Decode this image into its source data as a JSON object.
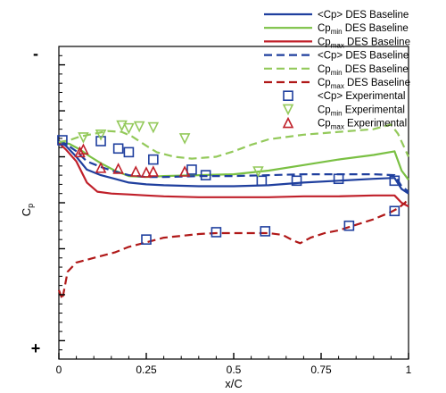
{
  "chart_data": {
    "type": "line",
    "xlabel": "x/C",
    "ylabel": "C",
    "ylabel_sub": "p",
    "xlim": [
      0,
      1
    ],
    "ylim": [
      -2.2,
      1.2
    ],
    "y_inverted": true,
    "x_ticks": [
      "0",
      "0.25",
      "0.5",
      "0.75",
      "1"
    ],
    "sign_labels": {
      "top": "-",
      "bottom": "+"
    },
    "grid": false,
    "legend_position": "top-right",
    "colors": {
      "blue": "#1f3f9e",
      "green": "#7ac043",
      "red": "#c0202a",
      "lightgreen": "#93c95a",
      "darkred": "#b01818"
    },
    "series": [
      {
        "name_main": "<Cp> DES Baseline",
        "name_sub": "",
        "kind": "line",
        "dash": "solid",
        "color": "blue",
        "x": [
          0,
          0.02,
          0.05,
          0.08,
          0.12,
          0.16,
          0.2,
          0.25,
          0.3,
          0.4,
          0.5,
          0.6,
          0.7,
          0.8,
          0.9,
          0.96,
          0.98,
          1
        ],
        "y": [
          -1.17,
          -1.12,
          -1.0,
          -0.86,
          -0.8,
          -0.76,
          -0.72,
          -0.7,
          -0.69,
          -0.68,
          -0.68,
          -0.69,
          -0.72,
          -0.74,
          -0.76,
          -0.77,
          -0.65,
          -0.6
        ]
      },
      {
        "name_main": "Cp",
        "name_sub": "min",
        "name_tail": " DES Baseline",
        "kind": "line",
        "dash": "solid",
        "color": "green",
        "x": [
          0,
          0.03,
          0.06,
          0.09,
          0.12,
          0.16,
          0.2,
          0.25,
          0.3,
          0.4,
          0.5,
          0.6,
          0.7,
          0.8,
          0.9,
          0.96,
          0.98,
          1
        ],
        "y": [
          -1.16,
          -1.14,
          -1.08,
          -1.0,
          -0.93,
          -0.85,
          -0.79,
          -0.78,
          -0.79,
          -0.8,
          -0.81,
          -0.85,
          -0.91,
          -0.97,
          -1.02,
          -1.06,
          -0.85,
          -0.75
        ]
      },
      {
        "name_main": "Cp",
        "name_sub": "max",
        "name_tail": " DES Baseline",
        "kind": "line",
        "dash": "solid",
        "color": "red",
        "x": [
          0,
          0.02,
          0.05,
          0.08,
          0.11,
          0.15,
          0.2,
          0.25,
          0.3,
          0.4,
          0.5,
          0.6,
          0.7,
          0.8,
          0.9,
          0.96,
          0.98,
          1
        ],
        "y": [
          -1.15,
          -1.08,
          -0.95,
          -0.72,
          -0.62,
          -0.6,
          -0.59,
          -0.58,
          -0.57,
          -0.56,
          -0.56,
          -0.56,
          -0.57,
          -0.57,
          -0.58,
          -0.58,
          -0.5,
          -0.46
        ]
      },
      {
        "name_main": "<Cp> DES Baseline",
        "name_sub": "",
        "kind": "line",
        "dash": "dashed",
        "color": "blue",
        "x": [
          0,
          0.02,
          0.05,
          0.08,
          0.12,
          0.16,
          0.2,
          0.25,
          0.3,
          0.4,
          0.5,
          0.6,
          0.7,
          0.8,
          0.9,
          0.96,
          0.98,
          1
        ],
        "y": [
          -1.17,
          -1.14,
          -1.06,
          -0.95,
          -0.89,
          -0.84,
          -0.8,
          -0.78,
          -0.78,
          -0.79,
          -0.79,
          -0.8,
          -0.81,
          -0.81,
          -0.81,
          -0.8,
          -0.68,
          -0.62
        ]
      },
      {
        "name_main": "Cp",
        "name_sub": "min",
        "name_tail": " DES Baseline",
        "kind": "line",
        "dash": "dashed",
        "color": "lightgreen",
        "x": [
          0,
          0.03,
          0.06,
          0.1,
          0.14,
          0.18,
          0.21,
          0.25,
          0.28,
          0.33,
          0.38,
          0.45,
          0.5,
          0.55,
          0.6,
          0.7,
          0.8,
          0.9,
          0.95,
          0.97,
          1
        ],
        "y": [
          -1.16,
          -1.18,
          -1.22,
          -1.25,
          -1.28,
          -1.27,
          -1.22,
          -1.12,
          -1.05,
          -1.0,
          -0.98,
          -1.0,
          -1.06,
          -1.13,
          -1.19,
          -1.24,
          -1.27,
          -1.3,
          -1.35,
          -1.25,
          -1.0
        ]
      },
      {
        "name_main": "Cp",
        "name_sub": "max",
        "name_tail": " DES Baseline",
        "kind": "line",
        "dash": "dashed",
        "color": "darkred",
        "x": [
          0,
          0.01,
          0.025,
          0.05,
          0.08,
          0.12,
          0.16,
          0.2,
          0.25,
          0.3,
          0.35,
          0.4,
          0.45,
          0.5,
          0.55,
          0.6,
          0.64,
          0.67,
          0.69,
          0.72,
          0.76,
          0.8,
          0.85,
          0.9,
          0.95,
          0.97,
          0.99,
          1
        ],
        "y": [
          0.45,
          0.55,
          0.25,
          0.15,
          0.12,
          0.08,
          0.04,
          -0.02,
          -0.07,
          -0.12,
          -0.14,
          -0.16,
          -0.17,
          -0.17,
          -0.17,
          -0.17,
          -0.15,
          -0.09,
          -0.06,
          -0.12,
          -0.17,
          -0.2,
          -0.26,
          -0.32,
          -0.4,
          -0.44,
          -0.5,
          -0.55
        ]
      },
      {
        "name_main": "<Cp> Experimental",
        "name_sub": "",
        "kind": "marker",
        "marker": "square",
        "color": "blue",
        "x": [
          0.01,
          0.12,
          0.17,
          0.2,
          0.27,
          0.38,
          0.42,
          0.58,
          0.68,
          0.8,
          0.96,
          0.96,
          0.83,
          0.59,
          0.45,
          0.25
        ],
        "y": [
          -1.18,
          -1.17,
          -1.09,
          -1.05,
          -0.97,
          -0.86,
          -0.8,
          -0.74,
          -0.74,
          -0.76,
          -0.74,
          -0.41,
          -0.25,
          -0.19,
          -0.18,
          -0.1
        ]
      },
      {
        "name_main": "Cp",
        "name_sub": "min",
        "name_tail": " Experimental",
        "kind": "marker",
        "marker": "triangle-down",
        "color": "lightgreen",
        "x": [
          0.07,
          0.12,
          0.18,
          0.2,
          0.23,
          0.27,
          0.36,
          0.57
        ],
        "y": [
          -1.21,
          -1.24,
          -1.34,
          -1.31,
          -1.33,
          -1.32,
          -1.2,
          -0.84
        ]
      },
      {
        "name_main": "Cp",
        "name_sub": "max",
        "name_tail": " Experimental",
        "kind": "marker",
        "marker": "triangle-up",
        "color": "red",
        "x": [
          0.06,
          0.07,
          0.12,
          0.17,
          0.22,
          0.25,
          0.27,
          0.36
        ],
        "y": [
          -1.05,
          -1.08,
          -0.88,
          -0.87,
          -0.84,
          -0.83,
          -0.84,
          -0.84
        ]
      }
    ]
  }
}
